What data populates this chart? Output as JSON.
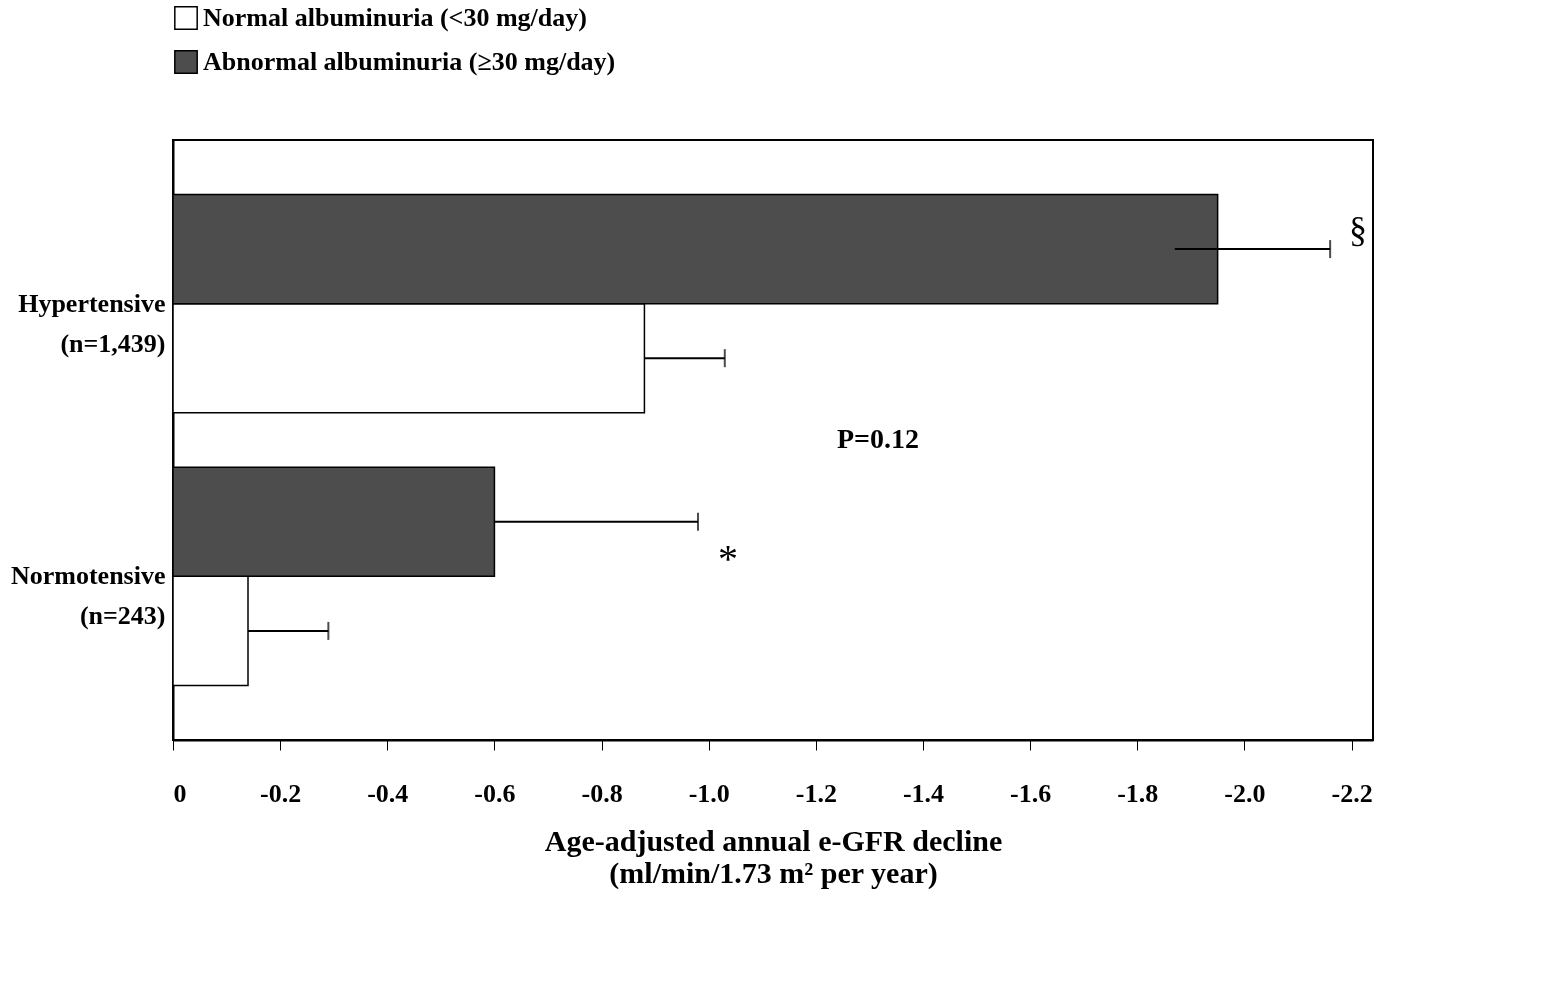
{
  "chart_data": {
    "type": "bar",
    "orientation": "horizontal",
    "categories": [
      "Hypertensive\n(n=1,439)",
      "Normotensive\n(n=243)"
    ],
    "series": [
      {
        "name": "Normal albuminuria (<30 mg/day)",
        "color": "#ffffff",
        "values": [
          -0.88,
          -0.14
        ],
        "errors": [
          [
            -0.88,
            -1.03
          ],
          [
            -0.14,
            -0.29
          ]
        ]
      },
      {
        "name": "Abnormal albuminuria (≥30 mg/day)",
        "color": "#4d4d4d",
        "values": [
          -1.95,
          -0.6
        ],
        "errors": [
          [
            -1.87,
            -2.16
          ],
          [
            -0.6,
            -0.98
          ]
        ]
      }
    ],
    "xlim": [
      0,
      -2.24
    ],
    "xticks": [
      0,
      -0.2,
      -0.4,
      -0.6,
      -0.8,
      {
        "value": -1,
        "label": "-1.0"
      },
      -1.2,
      -1.4,
      -1.6,
      -1.8,
      {
        "value": -2,
        "label": "-2.0"
      },
      -2.2
    ],
    "xlabel": "Age-adjusted annual e-GFR decline\n(ml/min/1.73 m² per year)",
    "annotations": [
      "§",
      "*",
      "P=0.12"
    ],
    "grid": false,
    "legend": "top left"
  }
}
